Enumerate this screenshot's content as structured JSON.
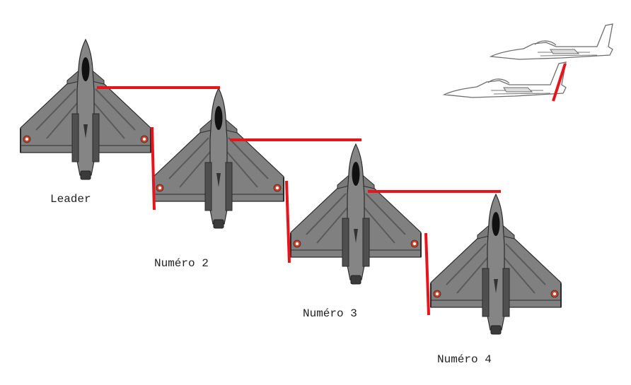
{
  "formation": {
    "aircraft": [
      {
        "label": "Leader"
      },
      {
        "label": "Numéro 2"
      },
      {
        "label": "Numéro 3"
      },
      {
        "label": "Numéro 4"
      }
    ]
  },
  "colors": {
    "aircraft_fill": "#7f7f7f",
    "aircraft_dark": "#4a4a4a",
    "aircraft_outline": "#2b2b2b",
    "guide_line": "#e8141c",
    "side_view_outline": "#6e6e6e",
    "roundel_outer": "#d93a1f",
    "roundel_inner": "#ffffff",
    "label_text": "#222222"
  },
  "icons": [
    "fighter-jet-top-view-icon",
    "fighter-jet-side-view-icon"
  ]
}
